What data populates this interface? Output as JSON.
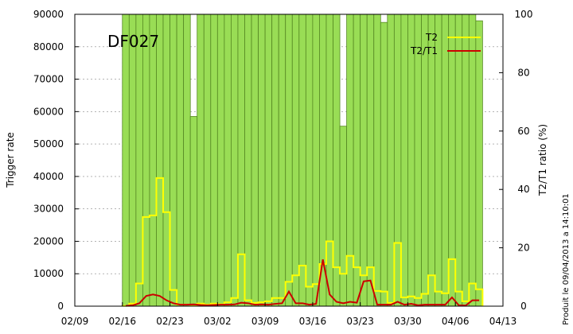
{
  "chart_data": {
    "type": "bar",
    "title": "DF027",
    "xlabel": "",
    "ylabel": "Trigger rate",
    "y2label": "T2/T1 ratio (%)",
    "credit": "Produit le 09/04/2013 a 14:10:01",
    "x_ticks": [
      "02/09",
      "02/16",
      "02/23",
      "03/02",
      "03/09",
      "03/16",
      "03/23",
      "03/30",
      "04/06",
      "04/13"
    ],
    "ylim": [
      0,
      90000
    ],
    "y_ticks": [
      "0",
      "10000",
      "20000",
      "30000",
      "40000",
      "50000",
      "60000",
      "70000",
      "80000",
      "90000"
    ],
    "y2lim": [
      0,
      100
    ],
    "y2_ticks": [
      "0",
      "20",
      "40",
      "60",
      "80",
      "100"
    ],
    "grid": true,
    "legend_position": "top-right",
    "colors": {
      "t1_fill": "#99dd55",
      "t1_edge": "#558822",
      "t2": "#ffff00",
      "ratio": "#cc0000"
    },
    "days": [
      "02/16",
      "02/17",
      "02/18",
      "02/19",
      "02/20",
      "02/21",
      "02/22",
      "02/23",
      "02/24",
      "02/25",
      "02/26",
      "02/27",
      "02/28",
      "03/01",
      "03/02",
      "03/03",
      "03/04",
      "03/05",
      "03/06",
      "03/07",
      "03/08",
      "03/09",
      "03/10",
      "03/11",
      "03/12",
      "03/13",
      "03/14",
      "03/15",
      "03/16",
      "03/17",
      "03/18",
      "03/19",
      "03/20",
      "03/21",
      "03/22",
      "03/23",
      "03/24",
      "03/25",
      "03/26",
      "03/27",
      "03/28",
      "03/29",
      "03/30",
      "03/31",
      "04/01",
      "04/02",
      "04/03",
      "04/04",
      "04/05",
      "04/06",
      "04/07",
      "04/08",
      "04/09"
    ],
    "series": [
      {
        "name": "T1",
        "axis": "left",
        "values": [
          90000,
          90000,
          90000,
          90000,
          90000,
          90000,
          90000,
          90000,
          90000,
          90000,
          58500,
          90000,
          90000,
          90000,
          90000,
          90000,
          90000,
          90000,
          90000,
          90000,
          90000,
          90000,
          90000,
          90000,
          90000,
          90000,
          90000,
          90000,
          90000,
          90000,
          90000,
          90000,
          55500,
          90000,
          90000,
          90000,
          90000,
          90000,
          87500,
          90000,
          90000,
          90000,
          90000,
          90000,
          90000,
          90000,
          90000,
          90000,
          90000,
          90000,
          90000,
          90000,
          88000
        ]
      },
      {
        "name": "T2",
        "axis": "left",
        "values": [
          100,
          800,
          7000,
          27500,
          28000,
          39500,
          29000,
          5000,
          500,
          500,
          400,
          800,
          500,
          800,
          600,
          1200,
          2500,
          16000,
          1800,
          1000,
          1200,
          1500,
          2500,
          2500,
          7500,
          9500,
          12500,
          6000,
          6800,
          13000,
          20000,
          12000,
          10000,
          15500,
          12000,
          9500,
          12000,
          4700,
          4500,
          1000,
          19500,
          2700,
          3000,
          2500,
          3800,
          9500,
          4500,
          4000,
          14500,
          4500,
          1500,
          7000,
          5200
        ]
      },
      {
        "name": "T2/T1",
        "axis": "right",
        "values": [
          0.1,
          0.3,
          1.0,
          3.5,
          4.0,
          3.5,
          2.0,
          1.0,
          0.5,
          0.5,
          0.6,
          0.4,
          0.3,
          0.4,
          0.5,
          0.5,
          0.6,
          1.2,
          1.0,
          0.5,
          0.6,
          0.5,
          0.8,
          1.0,
          5.0,
          1.0,
          1.0,
          0.5,
          0.8,
          16.0,
          4.0,
          1.5,
          1.0,
          1.5,
          1.2,
          8.5,
          8.8,
          0.5,
          0.5,
          0.5,
          1.5,
          0.5,
          0.8,
          0.3,
          0.5,
          0.5,
          0.5,
          0.5,
          3.0,
          0.3,
          0.2,
          2.0,
          2.0
        ]
      }
    ]
  }
}
